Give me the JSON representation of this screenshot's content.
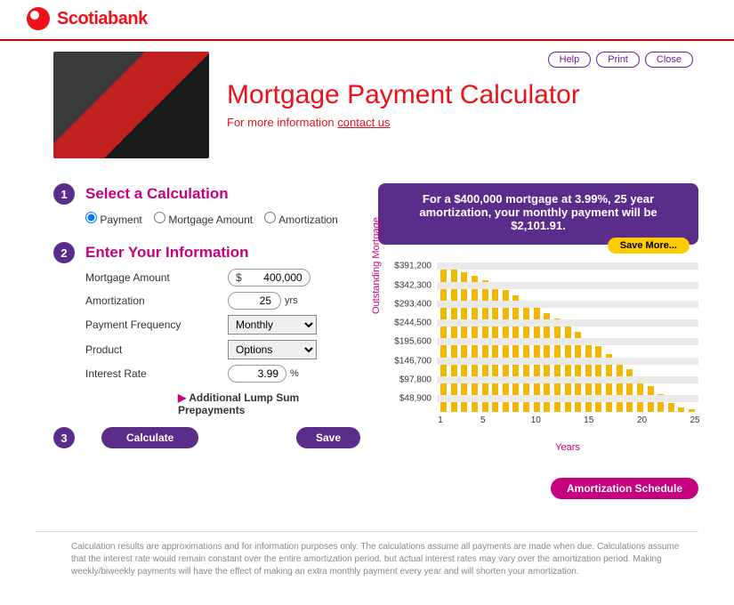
{
  "brand": {
    "name": "Scotiabank",
    "accent_color": "#ec111a"
  },
  "toolbar": {
    "help": "Help",
    "print": "Print",
    "close": "Close"
  },
  "hero": {
    "title": "Mortgage Payment Calculator",
    "subtitle_prefix": "For more information ",
    "contact_link": "contact us"
  },
  "step1": {
    "title": "Select a Calculation",
    "options": {
      "payment": "Payment",
      "mortgage_amount": "Mortgage Amount",
      "amortization": "Amortization"
    },
    "selected": "payment"
  },
  "step2": {
    "title": "Enter Your Information",
    "labels": {
      "mortgage_amount": "Mortgage Amount",
      "amortization": "Amortization",
      "payment_frequency": "Payment Frequency",
      "product": "Product",
      "interest_rate": "Interest Rate"
    },
    "values": {
      "mortgage_amount": "400,000",
      "amortization": "25",
      "amortization_unit": "yrs",
      "payment_frequency": "Monthly",
      "product": "Options",
      "interest_rate": "3.99",
      "interest_rate_unit": "%"
    },
    "prepay_label": "Additional Lump Sum Prepayments"
  },
  "step3": {
    "calculate": "Calculate",
    "save": "Save"
  },
  "summary": {
    "text": "For a $400,000 mortgage at 3.99%, 25 year amortization, your monthly payment will be $2,101.91.",
    "save_more": "Save More..."
  },
  "chart": {
    "type": "bar",
    "ylabel": "Outstanding Mortgage",
    "xlabel": "Years",
    "yticks": [
      "$391,200",
      "$342,300",
      "$293,400",
      "$244,500",
      "$195,600",
      "$146,700",
      "$97,800",
      "$48,900"
    ],
    "ymax": 400000,
    "grid_color": "#eaeaea",
    "bar_color": "#f2b700",
    "background_color": "#ffffff",
    "label_color": "#c6007e",
    "xticks": [
      {
        "label": "1",
        "pos": 0
      },
      {
        "label": "5",
        "pos": 16.7
      },
      {
        "label": "10",
        "pos": 37.5
      },
      {
        "label": "15",
        "pos": 58.3
      },
      {
        "label": "20",
        "pos": 79.2
      },
      {
        "label": "25",
        "pos": 100
      }
    ],
    "values": [
      391000,
      380000,
      370000,
      360000,
      348000,
      335000,
      322000,
      308000,
      294000,
      279000,
      262000,
      246000,
      229000,
      212000,
      193000,
      174000,
      154000,
      134000,
      113000,
      91000,
      69000,
      46000,
      23000,
      12000,
      6000
    ]
  },
  "amortization_schedule": "Amortization Schedule",
  "disclaimer": "Calculation results are approximations and for information purposes only.  The calculations assume all payments are made when due.  Calculations assume that the interest rate would remain constant over the entire amortization period, but actual interest rates may vary over the amortization period.  Making weekly/biweekly payments will have the effect of making an extra monthly payment every year and will shorten your amortization."
}
